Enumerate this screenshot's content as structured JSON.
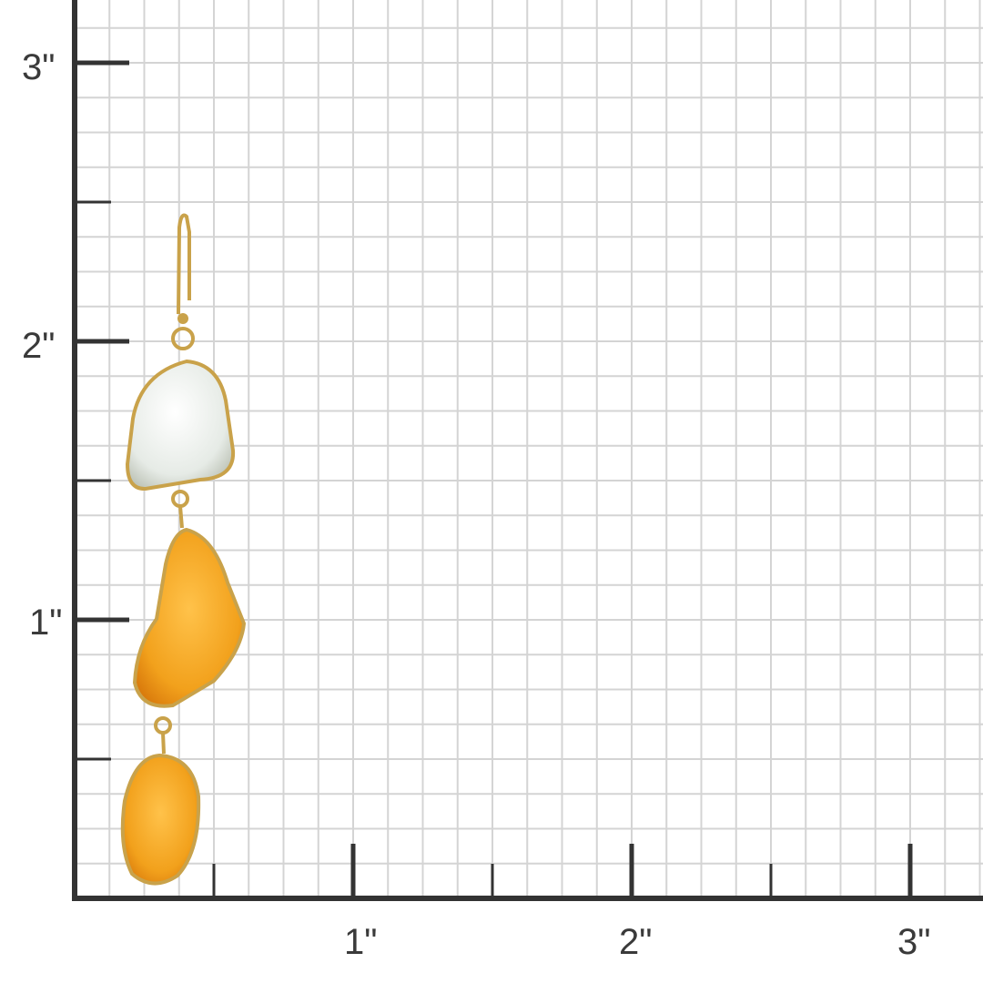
{
  "ruler": {
    "unit": "inch",
    "y_labels": [
      "1\"",
      "2\"",
      "3\""
    ],
    "x_labels": [
      "1\"",
      "2\"",
      "3\""
    ],
    "major_ticks": [
      1,
      2,
      3
    ],
    "half_ticks": [
      0.5,
      1.5,
      2.5
    ],
    "grid_subdivisions_per_inch": 8
  },
  "colors": {
    "background": "#ffffff",
    "grid": "#d4d4d4",
    "axis": "#333333",
    "gold": "#c9a24a",
    "white_stone": "#eef0ec",
    "orange_stone": "#f2a11c"
  },
  "product": {
    "type": "earring",
    "stones": [
      "white",
      "orange",
      "orange"
    ]
  }
}
